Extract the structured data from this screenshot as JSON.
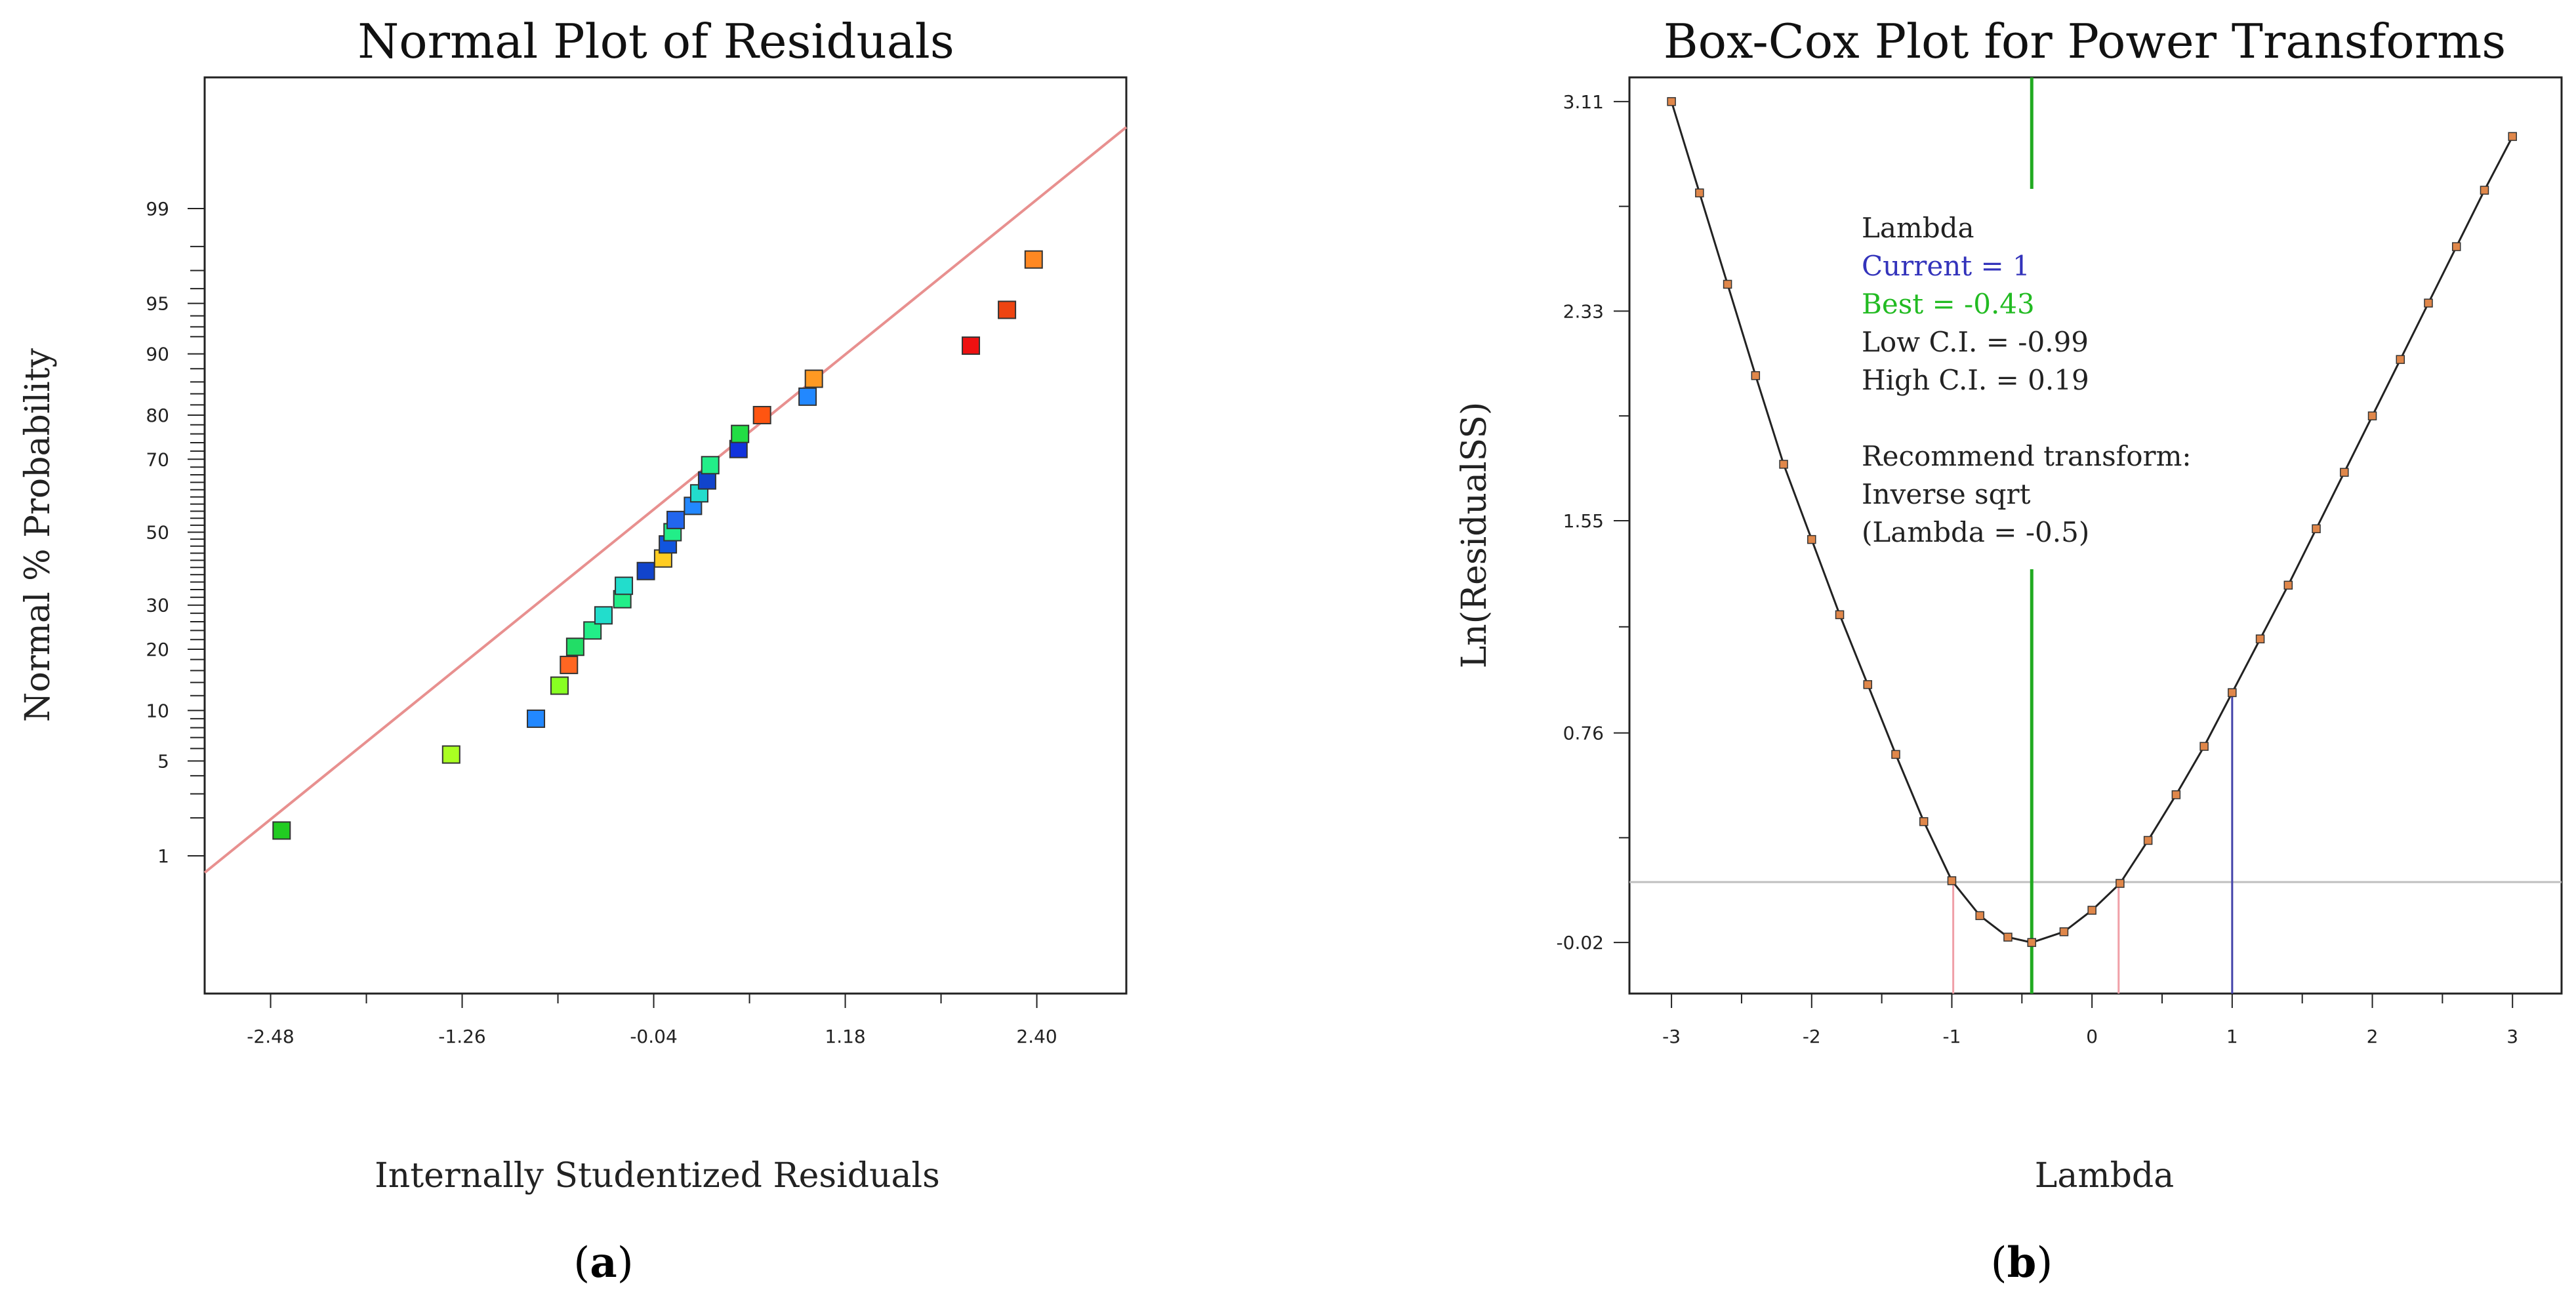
{
  "chart_data": [
    {
      "type": "scatter",
      "title": "Normal Plot of Residuals",
      "xlabel": "Internally Studentized Residuals",
      "ylabel": "Normal % Probability",
      "panel_label": "a",
      "xlim": [
        -2.9,
        2.97
      ],
      "x_ticks": [
        "-2.48",
        "-1.26",
        "-0.04",
        "1.18",
        "2.40"
      ],
      "y_ticks": [
        "1",
        "5",
        "10",
        "20",
        "30",
        "50",
        "70",
        "80",
        "90",
        "95",
        "99"
      ],
      "reference_line": {
        "from": [
          -2.9,
          0.72
        ],
        "to": [
          2.97,
          99.82
        ],
        "color": "#e8908f"
      },
      "points": [
        {
          "x": -2.41,
          "p": 1.6,
          "color": "#22cc22"
        },
        {
          "x": -1.33,
          "p": 5.5,
          "color": "#aaff22"
        },
        {
          "x": -0.79,
          "p": 9.0,
          "color": "#2288ff"
        },
        {
          "x": -0.64,
          "p": 13.5,
          "color": "#88ff22"
        },
        {
          "x": -0.58,
          "p": 17.0,
          "color": "#ff6622"
        },
        {
          "x": -0.54,
          "p": 20.5,
          "color": "#22dd66"
        },
        {
          "x": -0.43,
          "p": 24.0,
          "color": "#22ee88"
        },
        {
          "x": -0.36,
          "p": 27.5,
          "color": "#22ddcc"
        },
        {
          "x": -0.24,
          "p": 31.5,
          "color": "#22ee88"
        },
        {
          "x": -0.23,
          "p": 35.0,
          "color": "#22ddcc"
        },
        {
          "x": -0.09,
          "p": 39.0,
          "color": "#1144cc"
        },
        {
          "x": 0.02,
          "p": 42.5,
          "color": "#ffcc22"
        },
        {
          "x": 0.05,
          "p": 46.5,
          "color": "#1155dd"
        },
        {
          "x": 0.08,
          "p": 50.0,
          "color": "#22ee88"
        },
        {
          "x": 0.1,
          "p": 53.5,
          "color": "#2266ee"
        },
        {
          "x": 0.21,
          "p": 57.5,
          "color": "#2288ff"
        },
        {
          "x": 0.25,
          "p": 61.0,
          "color": "#22ddcc"
        },
        {
          "x": 0.3,
          "p": 64.5,
          "color": "#1144cc"
        },
        {
          "x": 0.32,
          "p": 68.5,
          "color": "#22ee88"
        },
        {
          "x": 0.5,
          "p": 72.5,
          "color": "#1133dd"
        },
        {
          "x": 0.51,
          "p": 76.0,
          "color": "#22dd44"
        },
        {
          "x": 0.65,
          "p": 80.0,
          "color": "#ff5511"
        },
        {
          "x": 0.94,
          "p": 83.5,
          "color": "#2288ff"
        },
        {
          "x": 0.98,
          "p": 86.5,
          "color": "#ff9922"
        },
        {
          "x": 1.98,
          "p": 91.0,
          "color": "#ee1111"
        },
        {
          "x": 2.21,
          "p": 94.5,
          "color": "#ee4411"
        },
        {
          "x": 2.38,
          "p": 97.5,
          "color": "#ff8822"
        }
      ]
    },
    {
      "type": "line",
      "title": "Box-Cox Plot for Power Transforms",
      "xlabel": "Lambda",
      "ylabel": "Ln(ResidualSS)",
      "panel_label": "b",
      "xlim": [
        -3.3,
        3.35
      ],
      "ylim": [
        -0.21,
        3.2
      ],
      "x_ticks": [
        "-3",
        "-2",
        "-1",
        "0",
        "1",
        "2",
        "3"
      ],
      "y_ticks": [
        "3.11",
        "2.33",
        "1.55",
        "0.76",
        "-0.02"
      ],
      "annotation": [
        {
          "text": "Lambda",
          "color": "#222222"
        },
        {
          "text": "Current = 1",
          "color": "#3333bb"
        },
        {
          "text": "Best = -0.43",
          "color": "#22bb22"
        },
        {
          "text": "Low C.I. = -0.99",
          "color": "#222222"
        },
        {
          "text": "High C.I. = 0.19",
          "color": "#222222"
        },
        {
          "text": "",
          "color": "#222222"
        },
        {
          "text": "Recommend transform:",
          "color": "#222222"
        },
        {
          "text": "Inverse sqrt",
          "color": "#222222"
        },
        {
          "text": " (Lambda = -0.5)",
          "color": "#222222"
        }
      ],
      "current": 1,
      "best": -0.43,
      "low_ci": -0.99,
      "high_ci": 0.19,
      "ci_threshold": 0.205,
      "curve": [
        [
          -3.0,
          3.11
        ],
        [
          -2.8,
          2.77
        ],
        [
          -2.6,
          2.43
        ],
        [
          -2.4,
          2.09
        ],
        [
          -2.2,
          1.76
        ],
        [
          -2.0,
          1.48
        ],
        [
          -1.8,
          1.2
        ],
        [
          -1.6,
          0.94
        ],
        [
          -1.4,
          0.68
        ],
        [
          -1.2,
          0.43
        ],
        [
          -1.0,
          0.21
        ],
        [
          -0.8,
          0.08
        ],
        [
          -0.6,
          0.0
        ],
        [
          -0.43,
          -0.02
        ],
        [
          -0.2,
          0.02
        ],
        [
          0.0,
          0.1
        ],
        [
          0.2,
          0.2
        ],
        [
          0.4,
          0.36
        ],
        [
          0.6,
          0.53
        ],
        [
          0.8,
          0.71
        ],
        [
          1.0,
          0.91
        ],
        [
          1.2,
          1.11
        ],
        [
          1.4,
          1.31
        ],
        [
          1.6,
          1.52
        ],
        [
          1.8,
          1.73
        ],
        [
          2.0,
          1.94
        ],
        [
          2.2,
          2.15
        ],
        [
          2.4,
          2.36
        ],
        [
          2.6,
          2.57
        ],
        [
          2.8,
          2.78
        ],
        [
          3.0,
          2.98
        ]
      ]
    }
  ]
}
